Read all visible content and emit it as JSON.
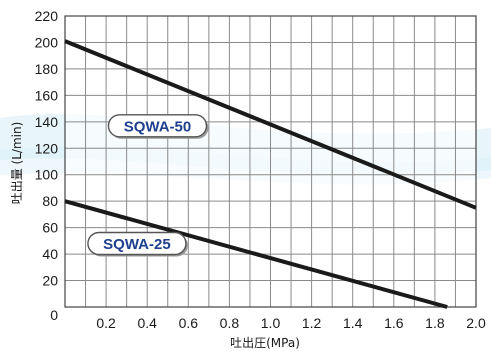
{
  "chart_data": {
    "type": "line",
    "title": "",
    "xlabel": "吐出圧(MPa)",
    "ylabel": "吐出量 (L/min)",
    "xlim": [
      0,
      2.0
    ],
    "ylim": [
      0,
      220
    ],
    "x_ticks": [
      "0.2",
      "0.4",
      "0.6",
      "0.8",
      "1.0",
      "1.2",
      "1.4",
      "1.6",
      "1.8",
      "2.0"
    ],
    "x_tick_values": [
      0.2,
      0.4,
      0.6,
      0.8,
      1.0,
      1.2,
      1.4,
      1.6,
      1.8,
      2.0
    ],
    "y_ticks": [
      "20",
      "40",
      "60",
      "80",
      "100",
      "120",
      "140",
      "160",
      "180",
      "200",
      "220"
    ],
    "y_tick_values": [
      20,
      40,
      60,
      80,
      100,
      120,
      140,
      160,
      180,
      200,
      220
    ],
    "origin_label": "0",
    "grid": true,
    "x_minor_step": 0.1,
    "series": [
      {
        "name": "SQWA-50",
        "x": [
          0,
          2.0
        ],
        "y": [
          201,
          75
        ],
        "label_at": [
          0.45,
          137
        ]
      },
      {
        "name": "SQWA-25",
        "x": [
          0,
          1.86
        ],
        "y": [
          80,
          0
        ],
        "label_at": [
          0.35,
          48
        ]
      }
    ],
    "colors": {
      "line": "#1a1a1a",
      "grid": "#8a8a8a",
      "label_text": "#1f3f8f",
      "label_border": "#555555",
      "label_fill": "#ffffff",
      "background_wave": "#d6eef8"
    }
  }
}
